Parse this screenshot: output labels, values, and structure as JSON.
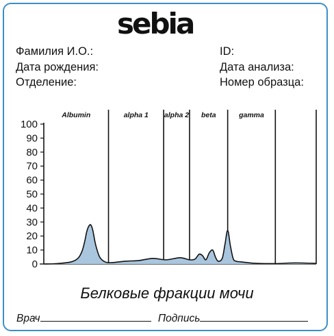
{
  "brand": {
    "logo_text": "sebia"
  },
  "patient_fields": {
    "left": [
      "Фамилия И.О.:",
      "Дата рождения:",
      "Отделение:"
    ],
    "right": [
      "ID:",
      "Дата анализа:",
      "Номер образца:"
    ]
  },
  "chart_data": {
    "type": "area",
    "title": "Белковые фракции мочи",
    "xlabel": "",
    "ylabel": "",
    "ylim": [
      0,
      100
    ],
    "yticks": [
      "0",
      "10",
      "20",
      "30",
      "40",
      "50",
      "60",
      "70",
      "80",
      "90",
      "100"
    ],
    "xlim": [
      0,
      400
    ],
    "fractions": [
      {
        "label": "Albumin",
        "start": 0,
        "end": 95
      },
      {
        "label": "alpha 1",
        "start": 95,
        "end": 176
      },
      {
        "label": "alpha 2",
        "start": 176,
        "end": 214
      },
      {
        "label": "beta",
        "start": 214,
        "end": 270
      },
      {
        "label": "gamma",
        "start": 270,
        "end": 340
      },
      {
        "label": "",
        "start": 340,
        "end": 400
      }
    ],
    "series": [
      {
        "fill_color": "#a9c6de",
        "line_color": "#111111",
        "x": [
          0,
          20,
          40,
          50,
          56,
          60,
          63,
          66,
          69,
          72,
          76,
          82,
          90,
          100,
          120,
          140,
          160,
          180,
          200,
          214,
          222,
          228,
          233,
          238,
          243,
          248,
          252,
          256,
          262,
          266,
          270,
          274,
          278,
          282,
          290,
          310,
          340,
          370,
          400
        ],
        "y": [
          0,
          0.3,
          1.5,
          4,
          9,
          16,
          23,
          27,
          28,
          24,
          14,
          5,
          1.5,
          1,
          2,
          2.5,
          4,
          3,
          4.5,
          3,
          3.5,
          7,
          6,
          3,
          8,
          10,
          5,
          2,
          4,
          14,
          24,
          13,
          4,
          2,
          1.5,
          0.5,
          0.3,
          0.8,
          0.4
        ]
      }
    ],
    "grid": false,
    "legend": "none"
  },
  "footer": {
    "doctor_label": "Врач",
    "signature_label": "Подпись"
  }
}
